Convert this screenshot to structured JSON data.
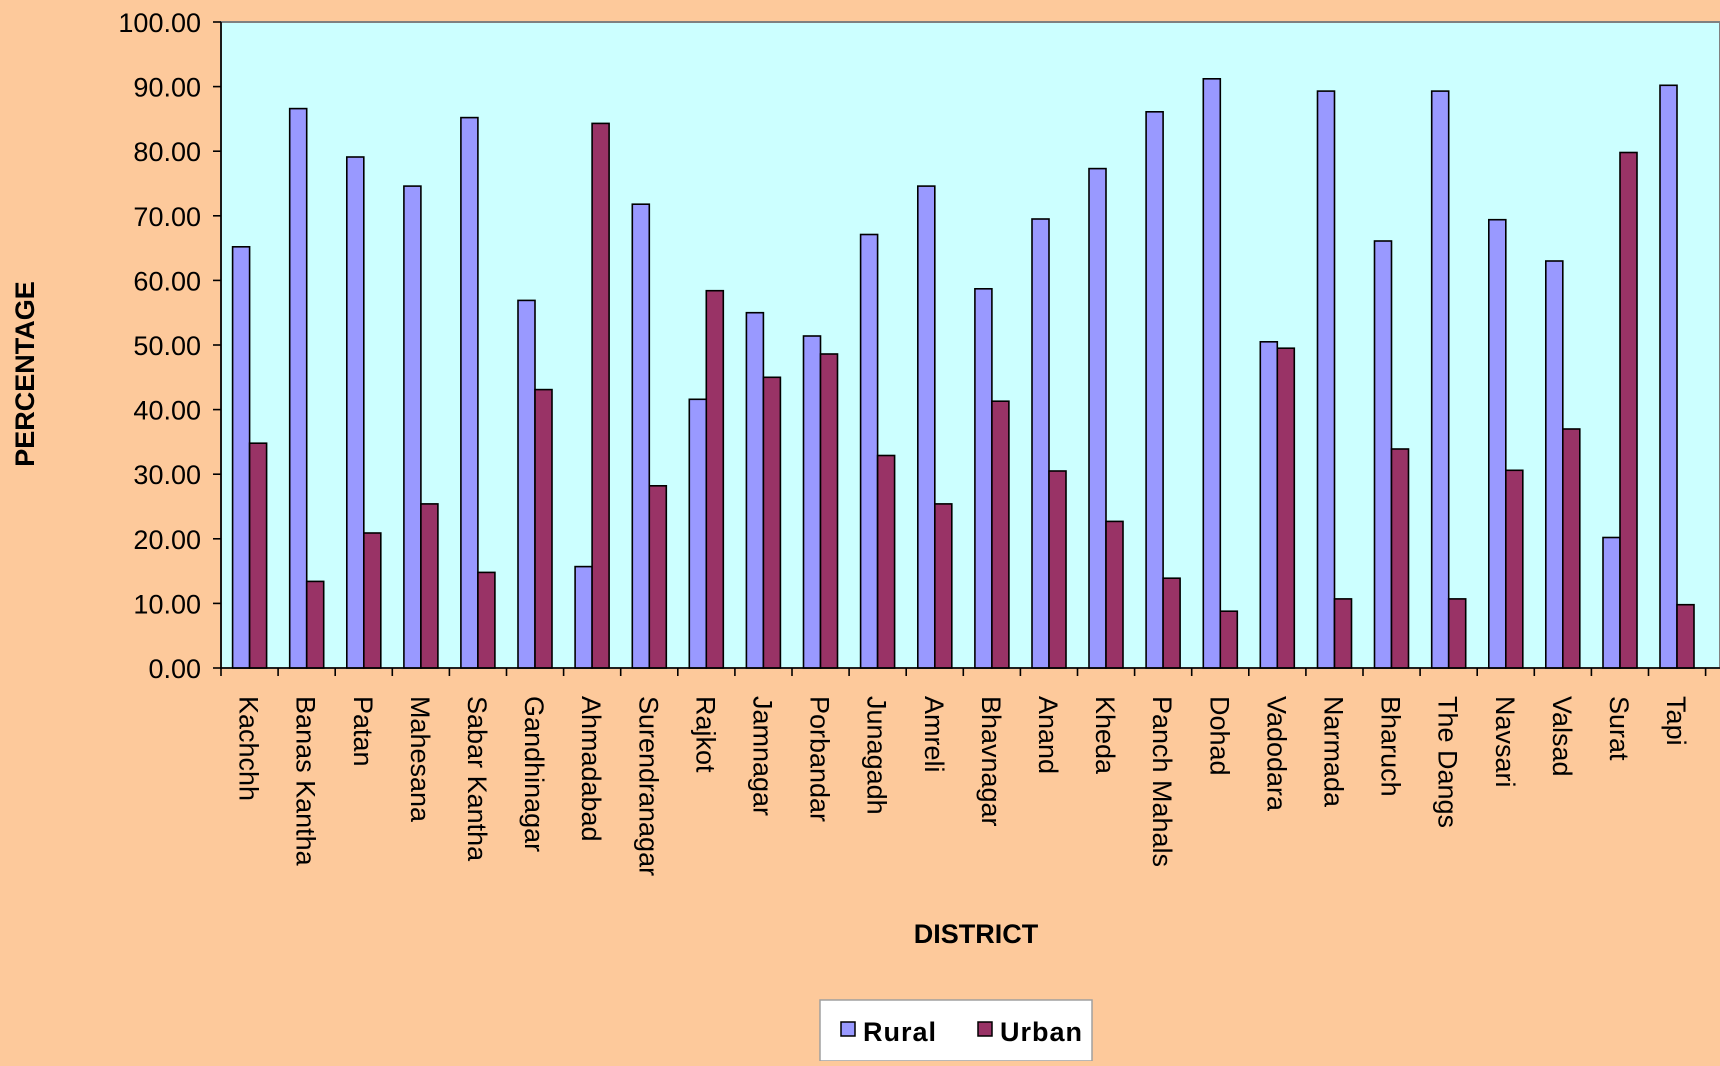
{
  "chart_data": {
    "type": "bar",
    "xlabel": "DISTRICT",
    "ylabel": "PERCENTAGE",
    "ylim": [
      0,
      100
    ],
    "yticks": [
      "0.00",
      "10.00",
      "20.00",
      "30.00",
      "40.00",
      "50.00",
      "60.00",
      "70.00",
      "80.00",
      "90.00",
      "100.00"
    ],
    "grid": false,
    "legend_position": "bottom",
    "categories": [
      "Kachchh",
      "Banas Kantha",
      "Patan",
      "Mahesana",
      "Sabar Kantha",
      "Gandhinagar",
      "Ahmadabad",
      "Surendranagar",
      "Rajkot",
      "Jamnagar",
      "Porbandar",
      "Junagadh",
      "Amreli",
      "Bhavnagar",
      "Anand",
      "Kheda",
      "Panch Mahals",
      "Dohad",
      "Vadodara",
      "Narmada",
      "Bharuch",
      "The Dangs",
      "Navsari",
      "Valsad",
      "Surat",
      "Tapi"
    ],
    "series": [
      {
        "name": "Rural",
        "color": "#9999FF",
        "values": [
          65.2,
          86.6,
          79.1,
          74.6,
          85.2,
          56.9,
          15.7,
          71.8,
          41.6,
          55.0,
          51.4,
          67.1,
          74.6,
          58.7,
          69.5,
          77.3,
          86.1,
          91.2,
          50.5,
          89.3,
          66.1,
          89.3,
          69.4,
          63.0,
          20.2,
          90.2
        ]
      },
      {
        "name": "Urban",
        "color": "#993366",
        "values": [
          34.8,
          13.4,
          20.9,
          25.4,
          14.8,
          43.1,
          84.3,
          28.2,
          58.4,
          45.0,
          48.6,
          32.9,
          25.4,
          41.3,
          30.5,
          22.7,
          13.9,
          8.8,
          49.5,
          10.7,
          33.9,
          10.7,
          30.6,
          37.0,
          79.8,
          9.8
        ]
      }
    ]
  },
  "colors": {
    "page_background": "#FDC99B",
    "plot_background": "#CCFFFF"
  }
}
